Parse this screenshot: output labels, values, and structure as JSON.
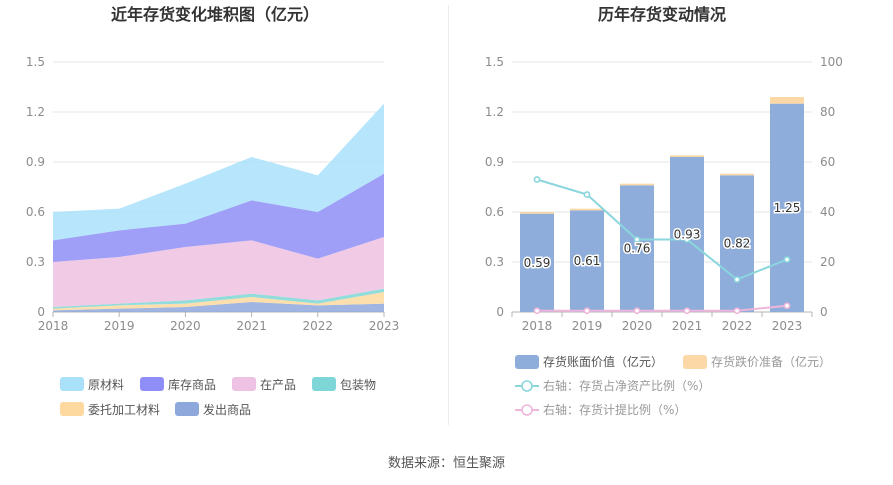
{
  "source_text": "数据来源：恒生聚源",
  "colors": {
    "raw_materials": "#a9e1fb",
    "stock_goods": "#8f8ef7",
    "wip": "#eec2e2",
    "packaging": "#7fd6d6",
    "outsourced": "#fdd9a0",
    "shipped": "#8fa8dc",
    "book_value": "#8eaddb",
    "impairment": "#fbd8a6",
    "ratio_net": "#8ad6dd",
    "ratio_provision": "#eeb6da"
  },
  "chart_data": [
    {
      "type": "area",
      "title": "近年存货变化堆积图（亿元）",
      "categories": [
        "2018",
        "2019",
        "2020",
        "2021",
        "2022",
        "2023"
      ],
      "ylim": [
        0,
        1.5
      ],
      "yticks": [
        "0",
        "0.3",
        "0.6",
        "0.9",
        "1.2",
        "1.5"
      ],
      "grid": true,
      "legend_position": "bottom",
      "stacked": true,
      "series": [
        {
          "name": "发出商品",
          "color_key": "shipped",
          "values": [
            0.01,
            0.02,
            0.03,
            0.06,
            0.04,
            0.05
          ]
        },
        {
          "name": "委托加工材料",
          "color_key": "outsourced",
          "values": [
            0.01,
            0.02,
            0.02,
            0.03,
            0.01,
            0.07
          ]
        },
        {
          "name": "包装物",
          "color_key": "packaging",
          "values": [
            0.01,
            0.01,
            0.02,
            0.02,
            0.02,
            0.02
          ]
        },
        {
          "name": "在产品",
          "color_key": "wip",
          "values": [
            0.27,
            0.28,
            0.32,
            0.32,
            0.25,
            0.31
          ]
        },
        {
          "name": "库存商品",
          "color_key": "stock_goods",
          "values": [
            0.13,
            0.16,
            0.14,
            0.24,
            0.28,
            0.38
          ]
        },
        {
          "name": "原材料",
          "color_key": "raw_materials",
          "values": [
            0.17,
            0.13,
            0.24,
            0.26,
            0.22,
            0.42
          ]
        }
      ],
      "legend": [
        {
          "name": "原材料",
          "color_key": "raw_materials"
        },
        {
          "name": "库存商品",
          "color_key": "stock_goods"
        },
        {
          "name": "在产品",
          "color_key": "wip"
        },
        {
          "name": "包装物",
          "color_key": "packaging"
        },
        {
          "name": "委托加工材料",
          "color_key": "outsourced"
        },
        {
          "name": "发出商品",
          "color_key": "shipped"
        }
      ]
    },
    {
      "type": "bar",
      "title": "历年存货变动情况",
      "categories": [
        "2018",
        "2019",
        "2020",
        "2021",
        "2022",
        "2023"
      ],
      "ylim": [
        0,
        1.5
      ],
      "yticks": [
        "0",
        "0.3",
        "0.6",
        "0.9",
        "1.2",
        "1.5"
      ],
      "y2lim": [
        0,
        100
      ],
      "y2ticks": [
        "0",
        "20",
        "40",
        "60",
        "80",
        "100"
      ],
      "grid": true,
      "legend_position": "bottom",
      "series": [
        {
          "name": "存货账面价值（亿元）",
          "kind": "bar",
          "color_key": "book_value",
          "values": [
            0.59,
            0.61,
            0.76,
            0.93,
            0.82,
            1.25
          ],
          "labels": [
            "0.59",
            "0.61",
            "0.76",
            "0.93",
            "0.82",
            "1.25"
          ]
        },
        {
          "name": "存货跌价准备（亿元）",
          "kind": "bar",
          "color_key": "impairment",
          "values": [
            0.01,
            0.01,
            0.01,
            0.01,
            0.01,
            0.04
          ]
        },
        {
          "name": "右轴：存货占净资产比例（%）",
          "kind": "line",
          "axis": "right",
          "color_key": "ratio_net",
          "values": [
            53,
            47,
            29,
            29,
            13,
            21
          ]
        },
        {
          "name": "右轴：存货计提比例（%）",
          "kind": "line",
          "axis": "right",
          "color_key": "ratio_provision",
          "values": [
            0.5,
            0.5,
            0.5,
            0.5,
            0.5,
            2.5
          ]
        }
      ]
    }
  ]
}
